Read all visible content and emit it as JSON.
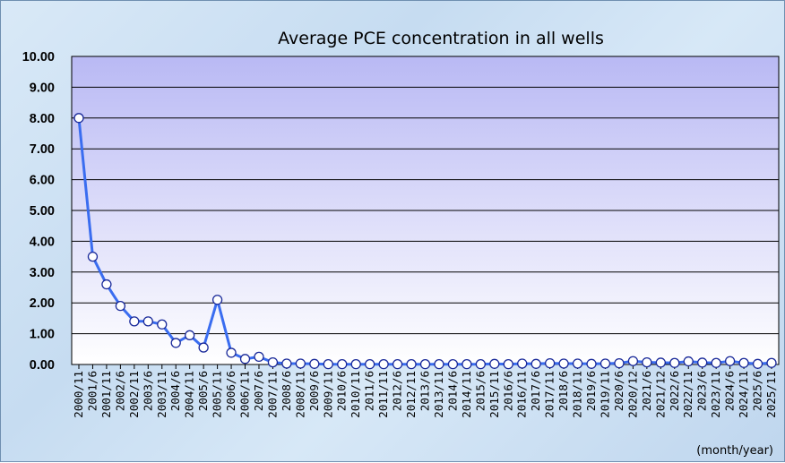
{
  "chart_data": {
    "type": "line",
    "title": "Average PCE concentration in all wells",
    "xlabel": "(month/year)",
    "ylabel": "",
    "ylim": [
      0,
      10
    ],
    "yticks": [
      "0.00",
      "1.00",
      "2.00",
      "3.00",
      "4.00",
      "5.00",
      "6.00",
      "7.00",
      "8.00",
      "9.00",
      "10.00"
    ],
    "grid": true,
    "categories": [
      "2000/11",
      "2001/6",
      "2001/11",
      "2002/6",
      "2002/11",
      "2003/6",
      "2003/11",
      "2004/6",
      "2004/11",
      "2005/6",
      "2005/11",
      "2006/6",
      "2006/11",
      "2007/6",
      "2007/11",
      "2008/6",
      "2008/11",
      "2009/6",
      "2009/11",
      "2010/6",
      "2010/11",
      "2011/6",
      "2011/11",
      "2012/6",
      "2012/11",
      "2013/6",
      "2013/11",
      "2014/6",
      "2014/11",
      "2015/6",
      "2015/11",
      "2016/6",
      "2016/11",
      "2017/6",
      "2017/11",
      "2018/6",
      "2018/11",
      "2019/6",
      "2019/11",
      "2020/6",
      "2020/12",
      "2021/6",
      "2021/12",
      "2022/6",
      "2022/11",
      "2023/6",
      "2023/11",
      "2024/6",
      "2024/11",
      "2025/6",
      "2025/11"
    ],
    "series": [
      {
        "name": "",
        "color": "#3a6df0",
        "values": [
          8.0,
          3.5,
          2.6,
          1.9,
          1.4,
          1.4,
          1.3,
          0.7,
          0.95,
          0.55,
          2.1,
          0.38,
          0.18,
          0.25,
          0.07,
          0.03,
          0.03,
          0.02,
          0.01,
          0.01,
          0.01,
          0.01,
          0.01,
          0.01,
          0.01,
          0.01,
          0.01,
          0.01,
          0.01,
          0.01,
          0.02,
          0.01,
          0.03,
          0.02,
          0.04,
          0.03,
          0.03,
          0.02,
          0.03,
          0.04,
          0.11,
          0.07,
          0.06,
          0.05,
          0.1,
          0.06,
          0.05,
          0.11,
          0.05,
          0.02,
          0.05
        ]
      }
    ]
  }
}
